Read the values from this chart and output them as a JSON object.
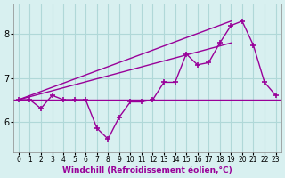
{
  "x": [
    0,
    1,
    2,
    3,
    4,
    5,
    6,
    7,
    8,
    9,
    10,
    11,
    12,
    13,
    14,
    15,
    16,
    17,
    18,
    19,
    20,
    21,
    22,
    23
  ],
  "y_curve": [
    6.5,
    6.5,
    6.3,
    6.6,
    6.5,
    6.5,
    6.5,
    5.85,
    5.6,
    6.1,
    6.45,
    6.45,
    6.5,
    6.9,
    6.9,
    7.55,
    7.3,
    7.35,
    7.8,
    8.2,
    8.3,
    7.75,
    6.9,
    6.6
  ],
  "y_line1_start": 6.5,
  "y_line1_end": 7.8,
  "y_line2_start": 6.5,
  "y_line2_end": 8.3,
  "y_hline": 6.5,
  "line_color": "#990099",
  "bg_color": "#d8f0f0",
  "grid_color": "#b0d8d8",
  "xlabel": "Windchill (Refroidissement éolien,°C)",
  "yticks": [
    6,
    7,
    8
  ],
  "xlim": [
    -0.5,
    23.5
  ],
  "ylim": [
    5.3,
    8.7
  ],
  "marker": "+"
}
